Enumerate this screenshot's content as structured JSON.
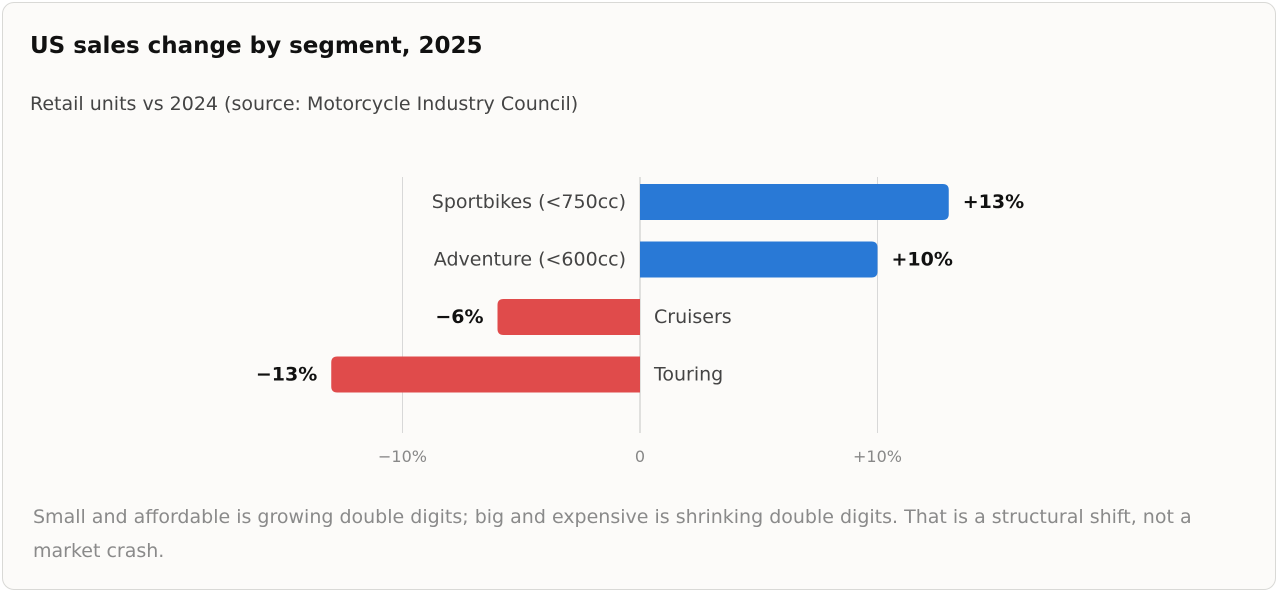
{
  "header": {
    "title": "US sales change by segment, 2025",
    "subtitle": "Retail units vs 2024 (source: Motorcycle Industry Council)"
  },
  "footnote": "Small and affordable is growing double digits; big and expensive is shrinking double digits. That is a structural shift, not a market crash.",
  "colors": {
    "positive": "#2979d6",
    "negative": "#e04b4b",
    "grid": "#d8d8d8",
    "axis_label": "#888888"
  },
  "chart_data": {
    "type": "bar",
    "orientation": "horizontal",
    "title": "US sales change by segment, 2025",
    "subtitle": "Retail units vs 2024 (source: Motorcycle Industry Council)",
    "categories": [
      "Sportbikes (<750cc)",
      "Adventure (<600cc)",
      "Cruisers",
      "Touring"
    ],
    "values": [
      13,
      10,
      -6,
      -13
    ],
    "value_labels": [
      "+13%",
      "+10%",
      "−6%",
      "−13%"
    ],
    "unit": "%",
    "xlim": [
      -13.2,
      13.4
    ],
    "xticks": [
      {
        "value": -10,
        "label": "−10%"
      },
      {
        "value": 0,
        "label": "0"
      },
      {
        "value": 10,
        "label": "+10%"
      }
    ],
    "grid": true,
    "legend": "none"
  }
}
